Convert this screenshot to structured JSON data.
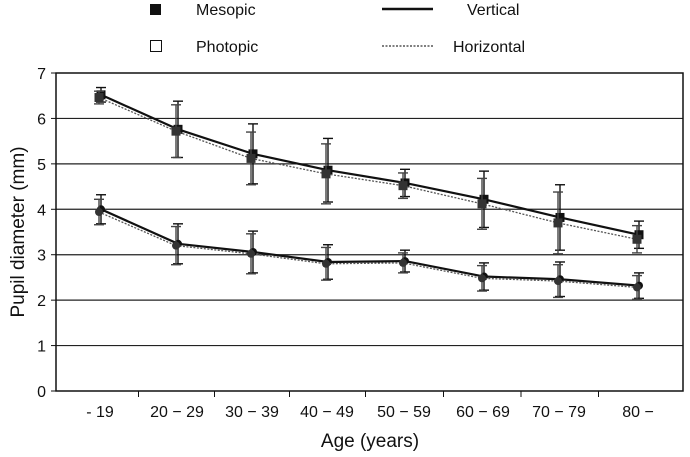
{
  "chart_data": {
    "type": "line",
    "title": "",
    "xlabel": "Age (years)",
    "ylabel": "Pupil diameter (mm)",
    "ylim": [
      0,
      7
    ],
    "yticks": [
      "0",
      "1",
      "2",
      "3",
      "4",
      "5",
      "6",
      "7"
    ],
    "grid": "horizontal",
    "legend_position": "top",
    "categories": [
      "- 19",
      "20 − 29",
      "30 − 39",
      "40 − 49",
      "50 − 59",
      "60 − 69",
      "70 − 79",
      "80 −"
    ],
    "legend": {
      "mesopic": "Mesopic",
      "photopic": "Photopic",
      "vertical": "Vertical",
      "horizontal": "Horizontal"
    },
    "series": [
      {
        "name": "Mesopic Vertical",
        "condition": "mesopic",
        "meridian": "vertical",
        "values": [
          6.52,
          5.76,
          5.22,
          4.86,
          4.58,
          4.22,
          3.82,
          3.44
        ],
        "error": [
          0.16,
          0.62,
          0.66,
          0.7,
          0.3,
          0.62,
          0.72,
          0.3
        ]
      },
      {
        "name": "Mesopic Horizontal",
        "condition": "mesopic",
        "meridian": "horizontal",
        "values": [
          6.46,
          5.72,
          5.12,
          4.78,
          4.52,
          4.12,
          3.7,
          3.34
        ],
        "error": [
          0.14,
          0.58,
          0.58,
          0.66,
          0.28,
          0.56,
          0.68,
          0.3
        ]
      },
      {
        "name": "Photopic Vertical",
        "condition": "photopic",
        "meridian": "vertical",
        "values": [
          4.0,
          3.24,
          3.06,
          2.84,
          2.86,
          2.52,
          2.46,
          2.32
        ],
        "error": [
          0.32,
          0.44,
          0.46,
          0.38,
          0.24,
          0.3,
          0.38,
          0.28
        ]
      },
      {
        "name": "Photopic Horizontal",
        "condition": "photopic",
        "meridian": "horizontal",
        "values": [
          3.94,
          3.2,
          3.02,
          2.8,
          2.82,
          2.48,
          2.42,
          2.28
        ],
        "error": [
          0.28,
          0.42,
          0.44,
          0.36,
          0.22,
          0.28,
          0.36,
          0.26
        ]
      }
    ]
  }
}
